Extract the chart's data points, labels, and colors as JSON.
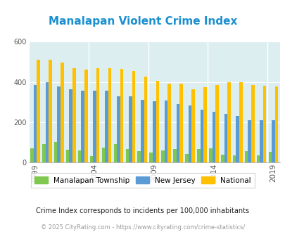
{
  "title": "Manalapan Violent Crime Index",
  "valid_years": [
    1999,
    2000,
    2001,
    2002,
    2003,
    2004,
    2005,
    2006,
    2007,
    2008,
    2009,
    2010,
    2011,
    2012,
    2013,
    2014,
    2015,
    2016,
    2017,
    2018,
    2019
  ],
  "manalapan_vals": [
    70,
    90,
    100,
    63,
    60,
    32,
    75,
    90,
    65,
    55,
    50,
    60,
    65,
    42,
    68,
    70,
    38,
    35,
    55,
    35,
    52
  ],
  "nj_vals": [
    385,
    400,
    378,
    365,
    358,
    358,
    355,
    328,
    328,
    310,
    305,
    308,
    290,
    283,
    262,
    252,
    243,
    230,
    210,
    210,
    210
  ],
  "national_vals": [
    510,
    510,
    498,
    470,
    463,
    468,
    470,
    465,
    455,
    428,
    405,
    390,
    390,
    365,
    375,
    385,
    400,
    398,
    385,
    380,
    378
  ],
  "manalapan_color": "#7ec850",
  "nj_color": "#5b9bd5",
  "national_color": "#ffc000",
  "plot_bg": "#ddeef0",
  "ylim": [
    0,
    600
  ],
  "yticks": [
    0,
    200,
    400,
    600
  ],
  "milestone_years": [
    1999,
    2004,
    2009,
    2014,
    2019
  ],
  "legend_labels": [
    "Manalapan Township",
    "New Jersey",
    "National"
  ],
  "footnote1": "Crime Index corresponds to incidents per 100,000 inhabitants",
  "footnote2": "© 2025 CityRating.com - https://www.cityrating.com/crime-statistics/",
  "title_color": "#1a8fd1",
  "footnote1_color": "#222222",
  "footnote2_color": "#999999",
  "bar_width": 0.27
}
